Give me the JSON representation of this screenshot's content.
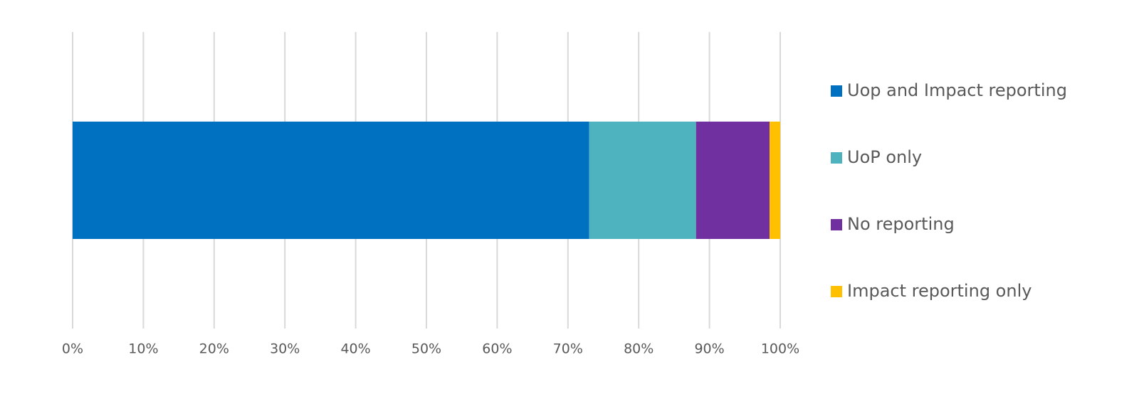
{
  "chart_data": {
    "type": "stacked-bar-horizontal",
    "categories": [
      null
    ],
    "series": [
      {
        "name": "Uop and Impact reporting",
        "color": "#0070c0",
        "values": [
          73
        ]
      },
      {
        "name": "UoP only",
        "color": "#4eb3be",
        "values": [
          15.1
        ]
      },
      {
        "name": "No reporting",
        "color": "#7030a0",
        "values": [
          10.4
        ]
      },
      {
        "name": "Impact reporting only",
        "color": "#ffc000",
        "values": [
          1.5
        ]
      }
    ],
    "xlim": [
      0,
      100
    ],
    "xticks": [
      {
        "value": 0,
        "label": "0%"
      },
      {
        "value": 10,
        "label": "10%"
      },
      {
        "value": 20,
        "label": "20%"
      },
      {
        "value": 30,
        "label": "30%"
      },
      {
        "value": 40,
        "label": "40%"
      },
      {
        "value": 50,
        "label": "50%"
      },
      {
        "value": 60,
        "label": "60%"
      },
      {
        "value": 70,
        "label": "70%"
      },
      {
        "value": 80,
        "label": "80%"
      },
      {
        "value": 90,
        "label": "90%"
      },
      {
        "value": 100,
        "label": "100%"
      }
    ],
    "grid": true,
    "legend": "right"
  }
}
